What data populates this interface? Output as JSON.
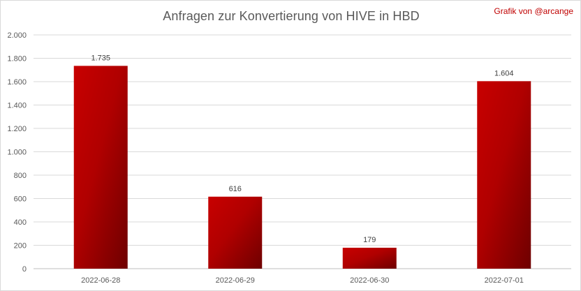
{
  "chart_data": {
    "type": "bar",
    "title": "Anfragen zur Konvertierung von HIVE in HBD",
    "credit": "Grafik von @arcange",
    "categories": [
      "2022-06-28",
      "2022-06-29",
      "2022-06-30",
      "2022-07-01"
    ],
    "values": [
      1735,
      616,
      179,
      1604
    ],
    "value_labels": [
      "1.735",
      "616",
      "179",
      "1.604"
    ],
    "ylim": [
      0,
      2000
    ],
    "yticks": [
      0,
      200,
      400,
      600,
      800,
      1000,
      1200,
      1400,
      1600,
      1800,
      2000
    ],
    "ytick_labels": [
      "0",
      "200",
      "400",
      "600",
      "800",
      "1.000",
      "1.200",
      "1.400",
      "1.600",
      "1.800",
      "2.000"
    ],
    "grid": true,
    "bar_color": "#c00000",
    "bar_color_dark": "#7a0000"
  }
}
